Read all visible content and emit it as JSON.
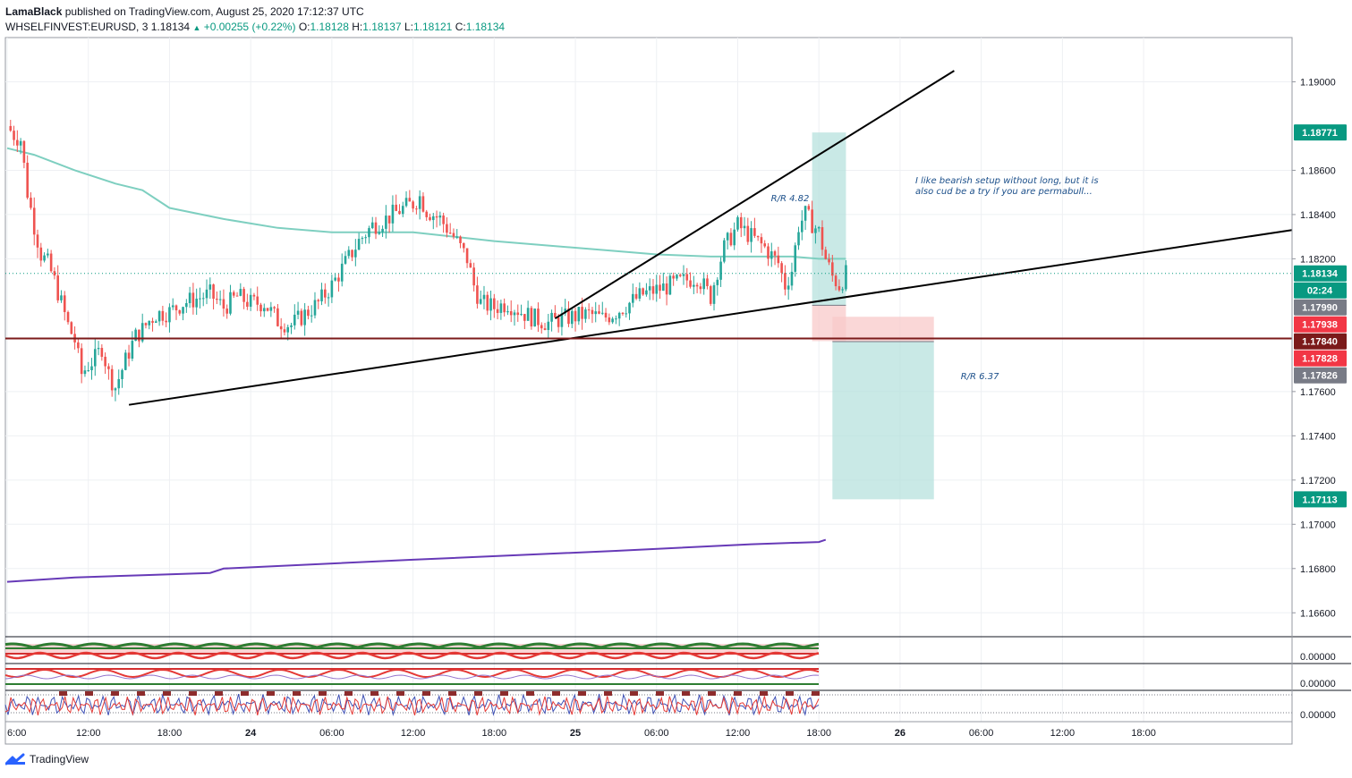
{
  "header": {
    "author": "LamaBlack",
    "published": "published on TradingView.com, August 25, 2020 17:12:37 UTC",
    "symbol": "WHSELFINVEST:EURUSD, 3",
    "last": "1.18134",
    "change": "+0.00255 (+0.22%)",
    "o_label": "O:",
    "o": "1.18128",
    "h_label": "H:",
    "h": "1.18137",
    "l_label": "L:",
    "l": "1.18121",
    "c_label": "C:",
    "c": "1.18134"
  },
  "footer": {
    "brand": "TradingView"
  },
  "chart_data": {
    "type": "line",
    "ylim": [
      1.165,
      1.192
    ],
    "y_ticks": [
      "1.19000",
      "1.18600",
      "1.18400",
      "1.18200",
      "1.17600",
      "1.17400",
      "1.17200",
      "1.17000",
      "1.16800",
      "1.16600"
    ],
    "x_ticks": [
      "6:00",
      "12:00",
      "18:00",
      "24",
      "06:00",
      "12:00",
      "18:00",
      "25",
      "06:00",
      "12:00",
      "18:00",
      "26",
      "06:00",
      "12:00",
      "18:00"
    ],
    "price_path": [
      [
        0,
        1.188
      ],
      [
        0.5,
        1.1876
      ],
      [
        1,
        1.1874
      ],
      [
        1.5,
        1.185
      ],
      [
        2,
        1.1835
      ],
      [
        2.5,
        1.1822
      ],
      [
        3,
        1.1818
      ],
      [
        3.5,
        1.181
      ],
      [
        4,
        1.18
      ],
      [
        4.5,
        1.179
      ],
      [
        5,
        1.1783
      ],
      [
        5.5,
        1.1768
      ],
      [
        6,
        1.1772
      ],
      [
        6.5,
        1.1775
      ],
      [
        7,
        1.178
      ],
      [
        7.5,
        1.1768
      ],
      [
        8,
        1.1762
      ],
      [
        8.5,
        1.177
      ],
      [
        9,
        1.1778
      ],
      [
        9.5,
        1.1785
      ],
      [
        10,
        1.1788
      ],
      [
        10.5,
        1.1792
      ],
      [
        11,
        1.1795
      ],
      [
        12,
        1.1796
      ],
      [
        13,
        1.18
      ],
      [
        14,
        1.1802
      ],
      [
        15,
        1.1804
      ],
      [
        16,
        1.1798
      ],
      [
        17,
        1.1803
      ],
      [
        18,
        1.18
      ],
      [
        19,
        1.18
      ],
      [
        20,
        1.1792
      ],
      [
        21,
        1.179
      ],
      [
        22,
        1.1795
      ],
      [
        23,
        1.18
      ],
      [
        24,
        1.1808
      ],
      [
        25,
        1.1818
      ],
      [
        26,
        1.1828
      ],
      [
        27,
        1.1835
      ],
      [
        28,
        1.1838
      ],
      [
        29,
        1.1842
      ],
      [
        30,
        1.1845
      ],
      [
        30.5,
        1.1848
      ],
      [
        31,
        1.1842
      ],
      [
        32,
        1.1838
      ],
      [
        33,
        1.183
      ],
      [
        34,
        1.182
      ],
      [
        34.5,
        1.1808
      ],
      [
        35,
        1.18
      ],
      [
        36,
        1.1798
      ],
      [
        37,
        1.18
      ],
      [
        38,
        1.1796
      ],
      [
        39,
        1.1793
      ],
      [
        40,
        1.1791
      ],
      [
        41,
        1.1793
      ],
      [
        42,
        1.1794
      ],
      [
        43,
        1.1795
      ],
      [
        44,
        1.1793
      ],
      [
        45,
        1.1796
      ],
      [
        46,
        1.18
      ],
      [
        47,
        1.1804
      ],
      [
        48,
        1.1806
      ],
      [
        49,
        1.1808
      ],
      [
        50,
        1.181
      ],
      [
        51,
        1.1812
      ],
      [
        52,
        1.1803
      ],
      [
        52.5,
        1.1815
      ],
      [
        53,
        1.1825
      ],
      [
        54,
        1.1835
      ],
      [
        55,
        1.183
      ],
      [
        56,
        1.1825
      ],
      [
        57,
        1.1818
      ],
      [
        57.5,
        1.1808
      ],
      [
        58,
        1.1815
      ],
      [
        58.5,
        1.1835
      ],
      [
        59,
        1.184
      ],
      [
        60,
        1.1832
      ],
      [
        60.5,
        1.182
      ],
      [
        61,
        1.1812
      ],
      [
        61.5,
        1.1808
      ],
      [
        62,
        1.1813
      ]
    ],
    "ma_teal": [
      [
        0,
        1.187
      ],
      [
        2,
        1.1867
      ],
      [
        5,
        1.186
      ],
      [
        8,
        1.1854
      ],
      [
        10,
        1.1851
      ],
      [
        12,
        1.1843
      ],
      [
        16,
        1.1838
      ],
      [
        20,
        1.1834
      ],
      [
        24,
        1.1832
      ],
      [
        30,
        1.1832
      ],
      [
        36,
        1.1828
      ],
      [
        44,
        1.1824
      ],
      [
        48,
        1.1822
      ],
      [
        52,
        1.1821
      ],
      [
        58,
        1.1821
      ],
      [
        60,
        1.182
      ],
      [
        62,
        1.182
      ]
    ],
    "ma_purple": [
      [
        0,
        1.1674
      ],
      [
        5,
        1.1676
      ],
      [
        10,
        1.1677
      ],
      [
        15,
        1.1678
      ],
      [
        16,
        1.168
      ],
      [
        30,
        1.1684
      ],
      [
        45,
        1.1688
      ],
      [
        55,
        1.1691
      ],
      [
        60,
        1.1692
      ],
      [
        60.5,
        1.1693
      ]
    ],
    "trendlines": [
      {
        "from": [
          9,
          1.1754
        ],
        "to": [
          98,
          1.1833
        ]
      },
      {
        "from": [
          40.5,
          1.1793
        ],
        "to": [
          70,
          1.1905
        ]
      }
    ],
    "horizontal_level": 1.1784,
    "positions": [
      {
        "label": "R/R 4.82",
        "entry": 1.1799,
        "stop": 1.17828,
        "target": 1.18771,
        "x_from": 59.5,
        "x_to": 62
      },
      {
        "label": "R/R 6.37",
        "entry": 1.17826,
        "stop": 1.17938,
        "target": 1.17113,
        "x_from": 61,
        "x_to": 68.5
      }
    ],
    "annotation": [
      "I like bearish setup without long, but it is",
      "also cud be a try if you are permabull..."
    ],
    "price_labels": [
      {
        "text": "1.18771",
        "color": "#089981"
      },
      {
        "text": "1.18134",
        "color": "#089981"
      },
      {
        "text": "02:24",
        "color": "#089981"
      },
      {
        "text": "1.17990",
        "color": "#787b86"
      },
      {
        "text": "1.17938",
        "color": "#f23645"
      },
      {
        "text": "1.17840",
        "color": "#7b1a1a"
      },
      {
        "text": "1.17828",
        "color": "#f23645"
      },
      {
        "text": "1.17826",
        "color": "#787b86"
      },
      {
        "text": "1.17113",
        "color": "#089981"
      }
    ],
    "indicator_scales": [
      "0.00000",
      "0.00000",
      "0.00000"
    ],
    "colors": {
      "up": "#26a69a",
      "down": "#ef5350",
      "teal_ma": "#7ecfc0",
      "purple_ma": "#673ab7",
      "level": "#7b1a1a",
      "profit": "#b2dfdb",
      "loss": "#f8c9c9"
    }
  }
}
